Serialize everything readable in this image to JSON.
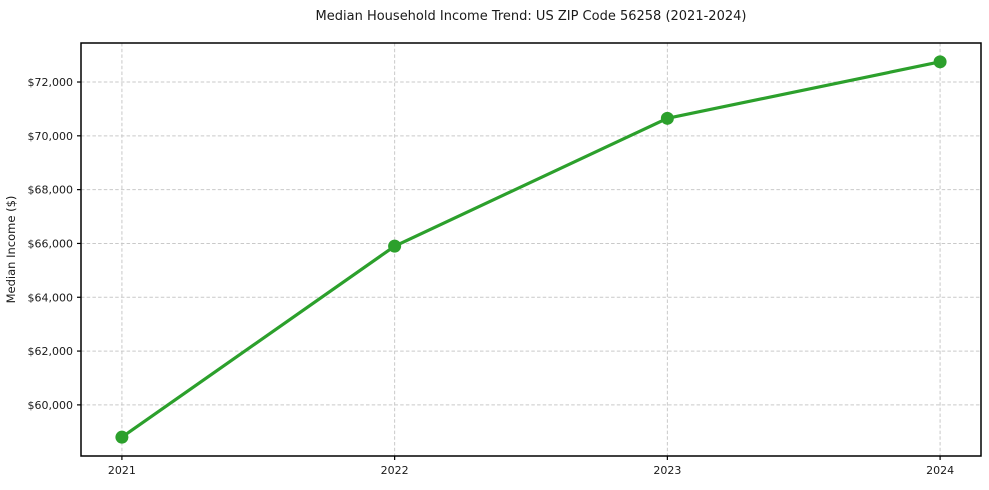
{
  "figure": {
    "background": "#ffffff"
  },
  "chart_data": {
    "type": "line",
    "title": "Median Household Income Trend: US ZIP Code 56258 (2021-2024)",
    "xlabel": "",
    "ylabel": "Median Income ($)",
    "x": [
      2021,
      2022,
      2023,
      2024
    ],
    "xtick_labels": [
      "2021",
      "2022",
      "2023",
      "2024"
    ],
    "values": [
      58800,
      65900,
      70650,
      72750
    ],
    "series_name": "median-household-income",
    "yticks": [
      {
        "value": 60000,
        "label": "$60,000"
      },
      {
        "value": 62000,
        "label": "$62,000"
      },
      {
        "value": 64000,
        "label": "$64,000"
      },
      {
        "value": 66000,
        "label": "$66,000"
      },
      {
        "value": 68000,
        "label": "$68,000"
      },
      {
        "value": 70000,
        "label": "$70,000"
      },
      {
        "value": 72000,
        "label": "$72,000"
      }
    ],
    "xlim": [
      2020.85,
      2024.15
    ],
    "ylim": [
      58100,
      73450
    ],
    "grid": "dashed-both-axes",
    "legend_position": "none",
    "line_color": "#2ca02c",
    "marker": "circle",
    "marker_color": "#2ca02c",
    "grid_color": "#c9c9c9",
    "background": "#ffffff"
  }
}
